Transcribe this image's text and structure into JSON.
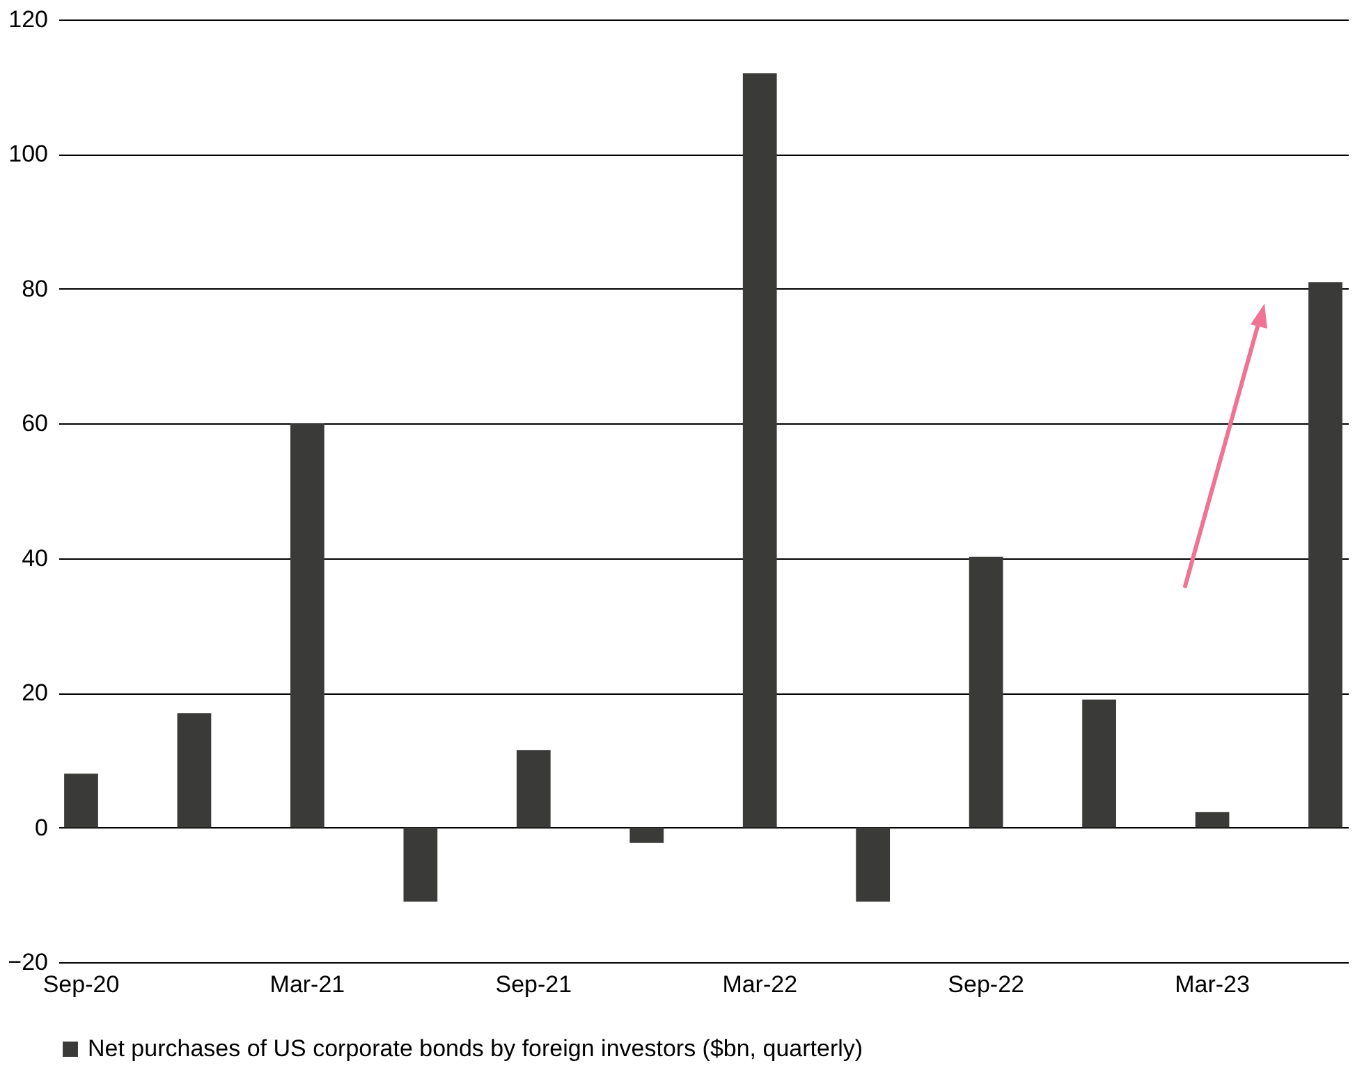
{
  "chart_data": {
    "type": "bar",
    "categories": [
      "Sep-20",
      null,
      "Mar-21",
      null,
      "Sep-21",
      null,
      "Mar-22",
      null,
      "Sep-22",
      null,
      "Mar-23",
      null
    ],
    "series": [
      {
        "name": "Net purchases of US corporate bonds by foreign investors ($bn, quarterly)",
        "color": "#3a3b38",
        "values": [
          8,
          17,
          60,
          -11,
          11.5,
          -2.3,
          112,
          -11,
          40.2,
          19,
          2.3,
          81
        ]
      }
    ],
    "ylim": [
      -20,
      120
    ],
    "yticks": [
      -20,
      0,
      20,
      40,
      60,
      80,
      100,
      120
    ],
    "grid": "y",
    "legend": "bottom"
  }
}
